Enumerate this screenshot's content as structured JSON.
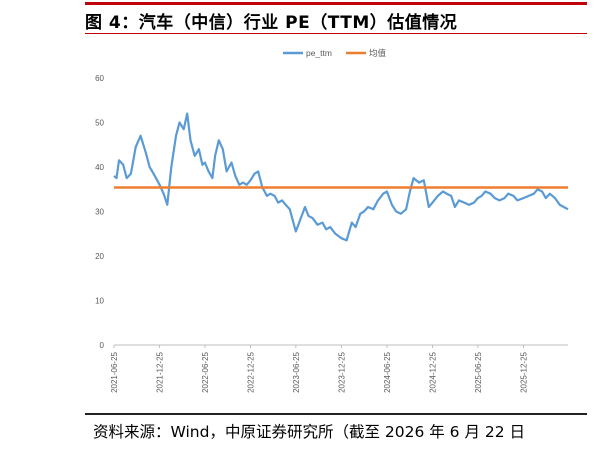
{
  "figure": {
    "title": "图 4：汽车（中信）行业 PE（TTM）估值情况",
    "source": "资料来源：Wind，中原证券研究所（截至 2026 年 6 月 22 日"
  },
  "colors": {
    "accent_rule": "#c0000a",
    "pe_line": "#5b9bd5",
    "mean_line": "#ed7d31"
  },
  "chart_data": {
    "type": "line",
    "title": "",
    "xlabel": "",
    "ylabel": "",
    "ylim": [
      0,
      60
    ],
    "yticks": [
      0,
      10,
      20,
      30,
      40,
      50,
      60
    ],
    "xticks": [
      "2021-06-25",
      "2021-12-25",
      "2022-06-25",
      "2022-12-25",
      "2023-06-25",
      "2023-12-25",
      "2024-06-25",
      "2024-12-25",
      "2025-06-25",
      "2025-12-25"
    ],
    "x_start": "2021-06-25",
    "x_end": "2026-06-22",
    "legend_position": "top",
    "grid": false,
    "series": [
      {
        "name": "pe_ttm",
        "color": "#5b9bd5",
        "x": [
          "2021-06-25",
          "2021-07-05",
          "2021-07-15",
          "2021-08-01",
          "2021-08-15",
          "2021-09-01",
          "2021-09-20",
          "2021-10-10",
          "2021-11-01",
          "2021-11-15",
          "2021-12-01",
          "2021-12-25",
          "2022-01-10",
          "2022-01-25",
          "2022-02-10",
          "2022-03-01",
          "2022-03-15",
          "2022-04-01",
          "2022-04-15",
          "2022-04-28",
          "2022-05-15",
          "2022-06-01",
          "2022-06-15",
          "2022-06-25",
          "2022-07-10",
          "2022-07-25",
          "2022-08-05",
          "2022-08-20",
          "2022-09-05",
          "2022-09-20",
          "2022-10-10",
          "2022-10-25",
          "2022-11-10",
          "2022-11-25",
          "2022-12-10",
          "2022-12-25",
          "2023-01-10",
          "2023-01-25",
          "2023-02-10",
          "2023-03-01",
          "2023-03-15",
          "2023-04-01",
          "2023-04-15",
          "2023-05-01",
          "2023-05-15",
          "2023-06-01",
          "2023-06-25",
          "2023-07-15",
          "2023-08-01",
          "2023-08-15",
          "2023-09-01",
          "2023-09-20",
          "2023-10-10",
          "2023-10-25",
          "2023-11-10",
          "2023-12-01",
          "2023-12-25",
          "2024-01-15",
          "2024-02-05",
          "2024-02-20",
          "2024-03-10",
          "2024-03-25",
          "2024-04-10",
          "2024-05-01",
          "2024-05-20",
          "2024-06-10",
          "2024-06-25",
          "2024-07-15",
          "2024-08-01",
          "2024-08-20",
          "2024-09-10",
          "2024-09-25",
          "2024-10-10",
          "2024-11-01",
          "2024-11-20",
          "2024-12-10",
          "2024-12-25",
          "2025-01-15",
          "2025-02-05",
          "2025-02-20",
          "2025-03-10",
          "2025-03-25",
          "2025-04-10",
          "2025-05-01",
          "2025-05-20",
          "2025-06-10",
          "2025-06-25",
          "2025-07-10",
          "2025-07-25",
          "2025-08-15",
          "2025-09-01",
          "2025-09-20",
          "2025-10-10",
          "2025-10-25",
          "2025-11-15",
          "2025-12-01",
          "2025-12-25",
          "2026-01-15",
          "2026-02-05",
          "2026-02-20",
          "2026-03-10",
          "2026-03-25",
          "2026-04-10",
          "2026-05-01",
          "2026-05-20",
          "2026-06-05",
          "2026-06-22"
        ],
        "values": [
          38.0,
          37.5,
          41.5,
          40.5,
          37.5,
          38.5,
          44.5,
          47.0,
          43.0,
          40.0,
          38.5,
          36.0,
          34.0,
          31.5,
          40.0,
          47.0,
          50.0,
          48.5,
          52.0,
          46.0,
          42.5,
          44.0,
          40.5,
          41.0,
          39.0,
          37.5,
          42.5,
          46.0,
          44.0,
          39.0,
          41.0,
          38.0,
          36.0,
          36.5,
          36.0,
          37.0,
          38.5,
          39.0,
          35.5,
          33.5,
          34.0,
          33.5,
          32.0,
          32.5,
          31.5,
          30.5,
          25.5,
          28.5,
          31.0,
          29.0,
          28.5,
          27.0,
          27.5,
          26.0,
          26.5,
          25.0,
          24.0,
          23.5,
          27.5,
          26.5,
          29.5,
          30.0,
          31.0,
          30.5,
          32.5,
          34.0,
          34.5,
          31.5,
          30.0,
          29.5,
          30.5,
          34.5,
          37.5,
          36.5,
          37.0,
          31.0,
          32.0,
          33.5,
          34.5,
          34.0,
          33.5,
          31.0,
          32.5,
          32.0,
          31.5,
          32.0,
          33.0,
          33.5,
          34.5,
          34.0,
          33.0,
          32.5,
          33.0,
          34.0,
          33.5,
          32.5,
          33.0,
          33.5,
          34.0,
          35.0,
          34.5,
          33.0,
          34.0,
          33.0,
          31.5,
          31.0,
          30.5
        ]
      },
      {
        "name": "均值",
        "color": "#ed7d31",
        "constant": 35.4
      }
    ]
  }
}
